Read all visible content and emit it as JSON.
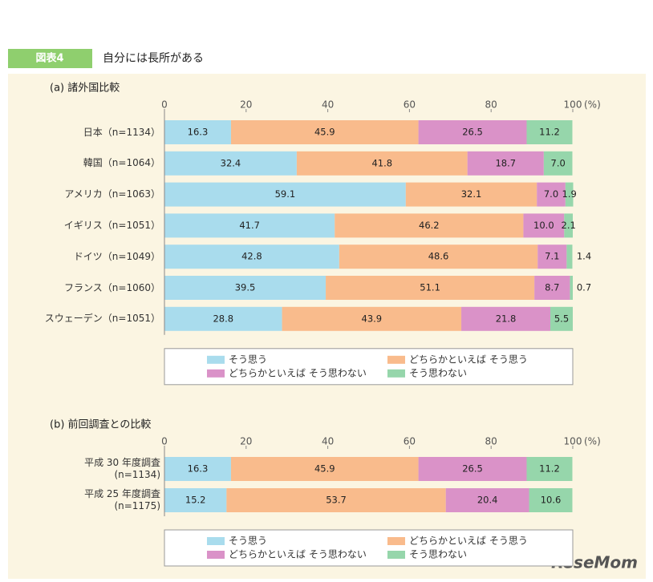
{
  "figure_label": "図表4",
  "title": "自分には長所がある",
  "watermark": "ReseMom",
  "chart_data": [
    {
      "type": "bar",
      "orientation": "horizontal",
      "stacked": true,
      "title": "(a) 諸外国比較",
      "unit": "(%)",
      "xlim": [
        0,
        100
      ],
      "xticks": [
        0,
        20,
        40,
        60,
        80,
        100
      ],
      "categories": [
        "日本（n=1134）",
        "韓国（n=1064）",
        "アメリカ（n=1063）",
        "イギリス（n=1051）",
        "ドイツ（n=1049）",
        "フランス（n=1060）",
        "スウェーデン（n=1051）"
      ],
      "series": [
        {
          "name": "そう思う",
          "color": "#a9dced",
          "values": [
            16.3,
            32.4,
            59.1,
            41.7,
            42.8,
            39.5,
            28.8
          ],
          "value_labels": [
            "16.3",
            "32.4",
            "59.1",
            "41.7",
            "42.8",
            "39.5",
            "28.8"
          ]
        },
        {
          "name": "どちらかといえば そう思う",
          "color": "#f9bb8c",
          "values": [
            45.9,
            41.8,
            32.1,
            46.2,
            48.6,
            51.1,
            43.9
          ],
          "value_labels": [
            "45.9",
            "41.8",
            "32.1",
            "46.2",
            "48.6",
            "51.1",
            "43.9"
          ]
        },
        {
          "name": "どちらかといえば そう思わない",
          "color": "#da92c8",
          "values": [
            26.5,
            18.7,
            7.0,
            10.0,
            7.1,
            8.7,
            21.8
          ],
          "value_labels": [
            "26.5",
            "18.7",
            "7.0",
            "10.0",
            "7.1",
            "8.7",
            "21.8"
          ]
        },
        {
          "name": "そう思わない",
          "color": "#96d6ab",
          "values": [
            11.2,
            7.0,
            1.9,
            2.1,
            1.4,
            0.7,
            5.5
          ],
          "value_labels": [
            "11.2",
            "7.0",
            "1.9",
            "2.1",
            "1.4",
            "0.7",
            "5.5"
          ]
        }
      ]
    },
    {
      "type": "bar",
      "orientation": "horizontal",
      "stacked": true,
      "title": "(b) 前回調査との比較",
      "unit": "(%)",
      "xlim": [
        0,
        100
      ],
      "xticks": [
        0,
        20,
        40,
        60,
        80,
        100
      ],
      "categories": [
        "平成 30 年度調査\n(n=1134)",
        "平成 25 年度調査\n(n=1175)"
      ],
      "series": [
        {
          "name": "そう思う",
          "color": "#a9dced",
          "values": [
            16.3,
            15.2
          ],
          "value_labels": [
            "16.3",
            "15.2"
          ]
        },
        {
          "name": "どちらかといえば そう思う",
          "color": "#f9bb8c",
          "values": [
            45.9,
            53.7
          ],
          "value_labels": [
            "45.9",
            "53.7"
          ]
        },
        {
          "name": "どちらかといえば そう思わない",
          "color": "#da92c8",
          "values": [
            26.5,
            20.4
          ],
          "value_labels": [
            "26.5",
            "20.4"
          ]
        },
        {
          "name": "そう思わない",
          "color": "#96d6ab",
          "values": [
            11.2,
            10.6
          ],
          "value_labels": [
            "11.2",
            "10.6"
          ]
        }
      ]
    }
  ]
}
